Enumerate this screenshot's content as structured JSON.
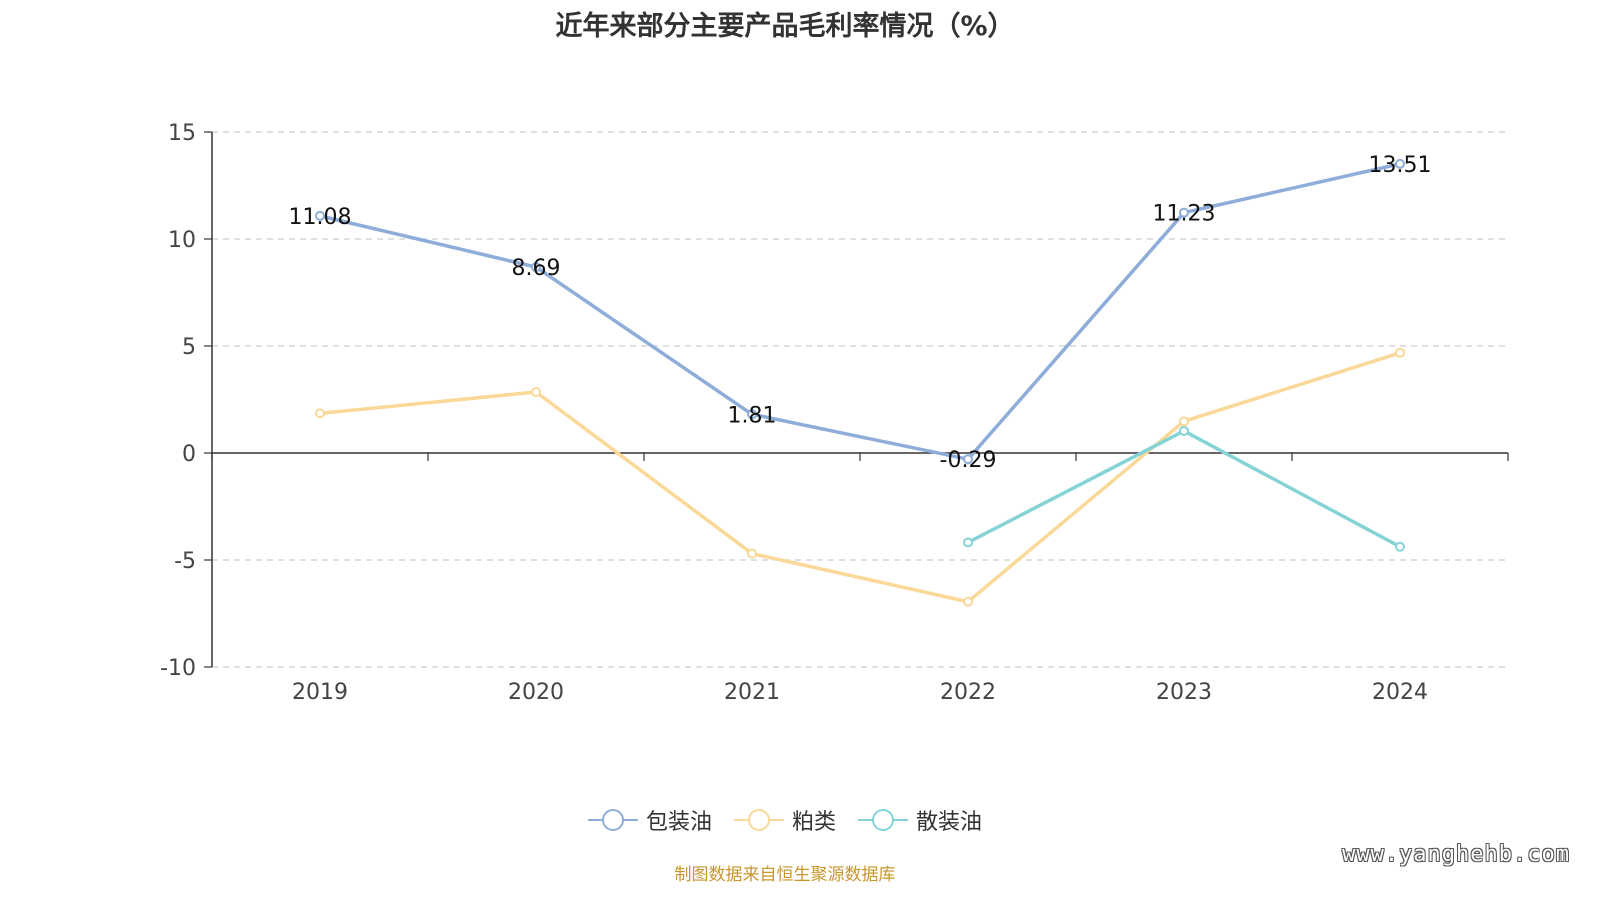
{
  "chart_data": {
    "type": "line",
    "title": "近年来部分主要产品毛利率情况（%）",
    "categories": [
      "2019",
      "2020",
      "2021",
      "2022",
      "2023",
      "2024"
    ],
    "ylim": [
      -10,
      15
    ],
    "yticks": [
      15,
      10,
      5,
      0,
      -5,
      -10
    ],
    "grid": true,
    "legend_position": "bottom",
    "series": [
      {
        "name": "包装油",
        "color": "#8eadd8",
        "values": [
          11.08,
          8.69,
          1.81,
          -0.29,
          11.23,
          13.51
        ],
        "labels": [
          "11.08",
          "8.69",
          "1.81",
          "-0.29",
          "11.23",
          "13.51"
        ]
      },
      {
        "name": "粕类",
        "color": "#f9d898",
        "values": [
          1.85,
          2.85,
          -4.7,
          -6.95,
          1.48,
          4.68
        ]
      },
      {
        "name": "散装油",
        "color": "#86d3d6",
        "values": [
          null,
          null,
          null,
          -4.18,
          1.03,
          -4.38
        ]
      }
    ]
  },
  "source": "制图数据来自恒生聚源数据库",
  "watermark": "www.yanghehb.com"
}
